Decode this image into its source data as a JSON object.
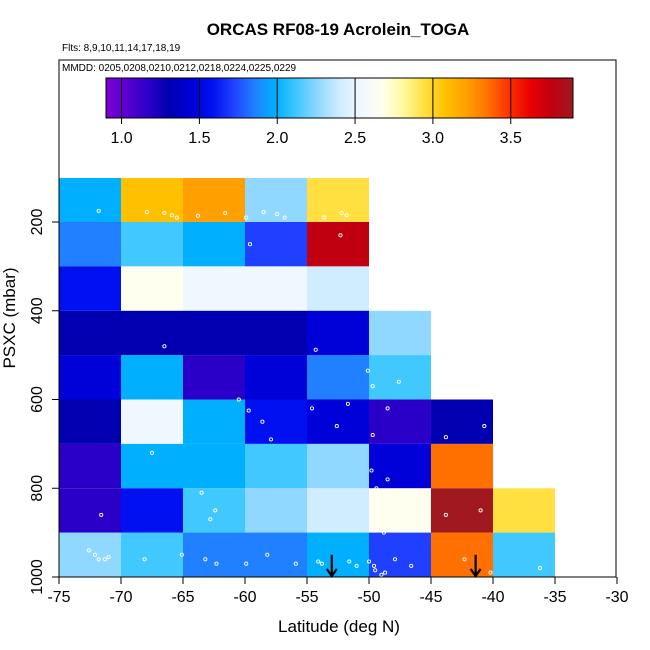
{
  "chart_data": {
    "type": "heatmap",
    "title": "ORCAS RF08-19 Acrolein_TOGA",
    "flights_note": "Flts: 8,9,10,11,14,17,18,19",
    "dates_note": "MMDD: 0205,0208,0210,0212,0218,0224,0225,0229",
    "xlabel": "Latitude (deg N)",
    "ylabel": "PSXC (mbar)",
    "xlim": [
      -75,
      -30
    ],
    "ylim": [
      1000,
      100
    ],
    "x_ticks": [
      -75,
      -70,
      -65,
      -60,
      -55,
      -50,
      -45,
      -40,
      -35,
      -30
    ],
    "x_tick_labels": [
      "-75",
      "-70",
      "-65",
      "-60",
      "-55",
      "-50",
      "-45",
      "-40",
      "-35",
      "-30"
    ],
    "y_ticks": [
      200,
      400,
      600,
      800,
      1000
    ],
    "y_tick_labels": [
      "200",
      "400",
      "600",
      "800",
      "1000"
    ],
    "colorbar": {
      "range": [
        0.9,
        3.9
      ],
      "ticks": [
        1.0,
        1.5,
        2.0,
        2.5,
        3.0,
        3.5
      ],
      "tick_labels": [
        "1.0",
        "1.5",
        "2.0",
        "2.5",
        "3.0",
        "3.5"
      ],
      "colors": [
        "#7b00d4",
        "#5a00d0",
        "#2a00c8",
        "#0000b0",
        "#0000d8",
        "#0010f0",
        "#2040ff",
        "#2080ff",
        "#00b0ff",
        "#40c8ff",
        "#90d8ff",
        "#d0ecff",
        "#f0f8ff",
        "#fffff0",
        "#fffaa0",
        "#ffe040",
        "#ffc000",
        "#ffa000",
        "#ff7000",
        "#ff3000",
        "#e80000",
        "#c00010",
        "#a01820"
      ]
    },
    "lat_bins": [
      -75,
      -70,
      -65,
      -60,
      -55,
      -50,
      -45,
      -40,
      -35
    ],
    "pressure_bins": [
      100,
      200,
      300,
      400,
      500,
      600,
      700,
      800,
      900,
      1000
    ],
    "values": [
      [
        1.95,
        3.05,
        3.2,
        2.25,
        2.95,
        null,
        null,
        null
      ],
      [
        1.85,
        2.1,
        1.95,
        1.75,
        3.65,
        null,
        null,
        null
      ],
      [
        1.65,
        2.6,
        2.55,
        2.5,
        2.35,
        null,
        null,
        null
      ],
      [
        1.4,
        1.4,
        1.4,
        1.42,
        1.43,
        2.3,
        null,
        null
      ],
      [
        1.45,
        2.05,
        1.2,
        1.45,
        1.85,
        2.1,
        null,
        null
      ],
      [
        1.35,
        2.5,
        2.05,
        1.65,
        1.45,
        1.2,
        1.4,
        null
      ],
      [
        1.28,
        1.95,
        2.05,
        2.15,
        2.25,
        1.45,
        3.25,
        null
      ],
      [
        1.2,
        1.65,
        2.15,
        2.25,
        2.35,
        2.6,
        3.8,
        2.95
      ],
      [
        2.25,
        2.15,
        1.85,
        1.85,
        1.95,
        1.75,
        3.25,
        2.1
      ]
    ],
    "sample_points": [
      [
        -71.8,
        175
      ],
      [
        -67.9,
        178
      ],
      [
        -66.5,
        180
      ],
      [
        -65.9,
        185
      ],
      [
        -65.5,
        190
      ],
      [
        -63.8,
        186
      ],
      [
        -61.6,
        180
      ],
      [
        -59.9,
        190
      ],
      [
        -58.5,
        178
      ],
      [
        -57.4,
        182
      ],
      [
        -56.8,
        190
      ],
      [
        -53.6,
        190
      ],
      [
        -52.2,
        180
      ],
      [
        -51.8,
        185
      ],
      [
        -52.3,
        230
      ],
      [
        -59.6,
        250
      ],
      [
        -54.3,
        488
      ],
      [
        -66.5,
        480
      ],
      [
        -50.1,
        535
      ],
      [
        -49.7,
        570
      ],
      [
        -47.6,
        560
      ],
      [
        -60.5,
        600
      ],
      [
        -54.6,
        620
      ],
      [
        -51.7,
        610
      ],
      [
        -48.5,
        620
      ],
      [
        -59.7,
        625
      ],
      [
        -58.6,
        650
      ],
      [
        -57.9,
        690
      ],
      [
        -52.6,
        660
      ],
      [
        -49.7,
        680
      ],
      [
        -43.8,
        685
      ],
      [
        -40.7,
        660
      ],
      [
        -67.5,
        720
      ],
      [
        -49.8,
        760
      ],
      [
        -48.5,
        780
      ],
      [
        -63.5,
        810
      ],
      [
        -62.8,
        870
      ],
      [
        -62.4,
        850
      ],
      [
        -49.4,
        800
      ],
      [
        -49.0,
        830
      ],
      [
        -48.4,
        870
      ],
      [
        -48.8,
        900
      ],
      [
        -71.6,
        860
      ],
      [
        -43.8,
        860
      ],
      [
        -41.0,
        850
      ],
      [
        -72.6,
        940
      ],
      [
        -72.1,
        950
      ],
      [
        -71.8,
        960
      ],
      [
        -71.3,
        960
      ],
      [
        -71.0,
        955
      ],
      [
        -68.1,
        960
      ],
      [
        -65.1,
        950
      ],
      [
        -63.2,
        960
      ],
      [
        -62.3,
        970
      ],
      [
        -59.9,
        970
      ],
      [
        -58.2,
        950
      ],
      [
        -55.9,
        970
      ],
      [
        -54.1,
        965
      ],
      [
        -53.8,
        970
      ],
      [
        -51.6,
        965
      ],
      [
        -51.0,
        975
      ],
      [
        -50.0,
        965
      ],
      [
        -49.6,
        975
      ],
      [
        -49.5,
        985
      ],
      [
        -49.0,
        995
      ],
      [
        -48.7,
        990
      ],
      [
        -47.9,
        960
      ],
      [
        -46.6,
        975
      ],
      [
        -42.3,
        960
      ],
      [
        -40.2,
        990
      ],
      [
        -36.2,
        980
      ]
    ],
    "arrows": [
      {
        "lat": -53.0,
        "top_mbar": 950,
        "bottom_mbar": 1000
      },
      {
        "lat": -41.4,
        "top_mbar": 950,
        "bottom_mbar": 1000
      }
    ]
  }
}
